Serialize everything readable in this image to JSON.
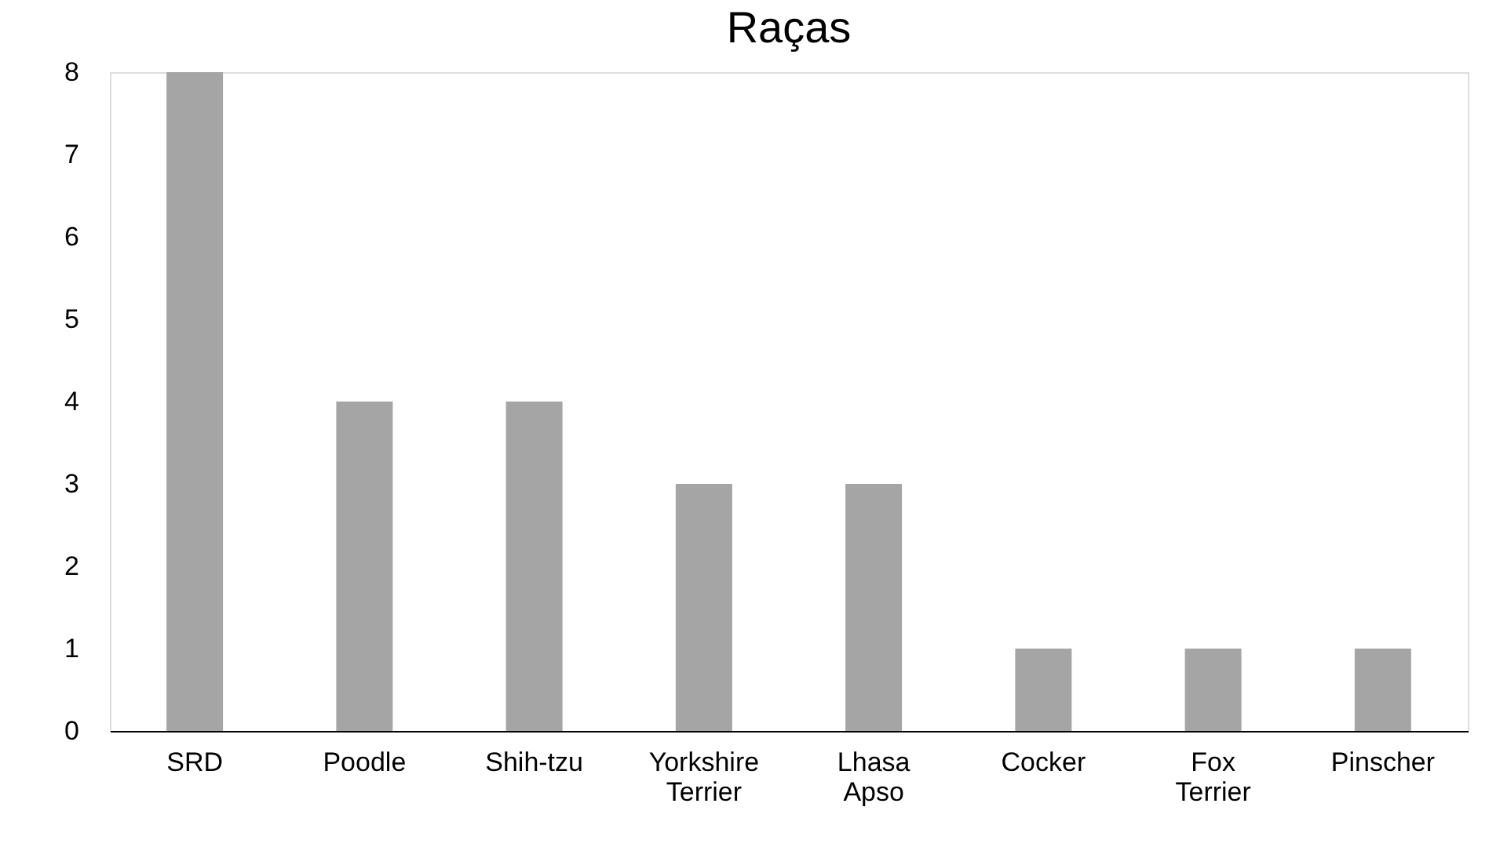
{
  "chart_data": {
    "type": "bar",
    "title": "Raças",
    "categories": [
      "SRD",
      "Poodle",
      "Shih-tzu",
      "Yorkshire Terrier",
      "Lhasa Apso",
      "Cocker",
      "Fox Terrier",
      "Pinscher"
    ],
    "values": [
      8,
      4,
      4,
      3,
      3,
      1,
      1,
      1
    ],
    "color": "#a5a5a5",
    "ylim": [
      0,
      8
    ],
    "yticks": [
      0,
      1,
      2,
      3,
      4,
      5,
      6,
      7,
      8
    ],
    "grid": false
  }
}
